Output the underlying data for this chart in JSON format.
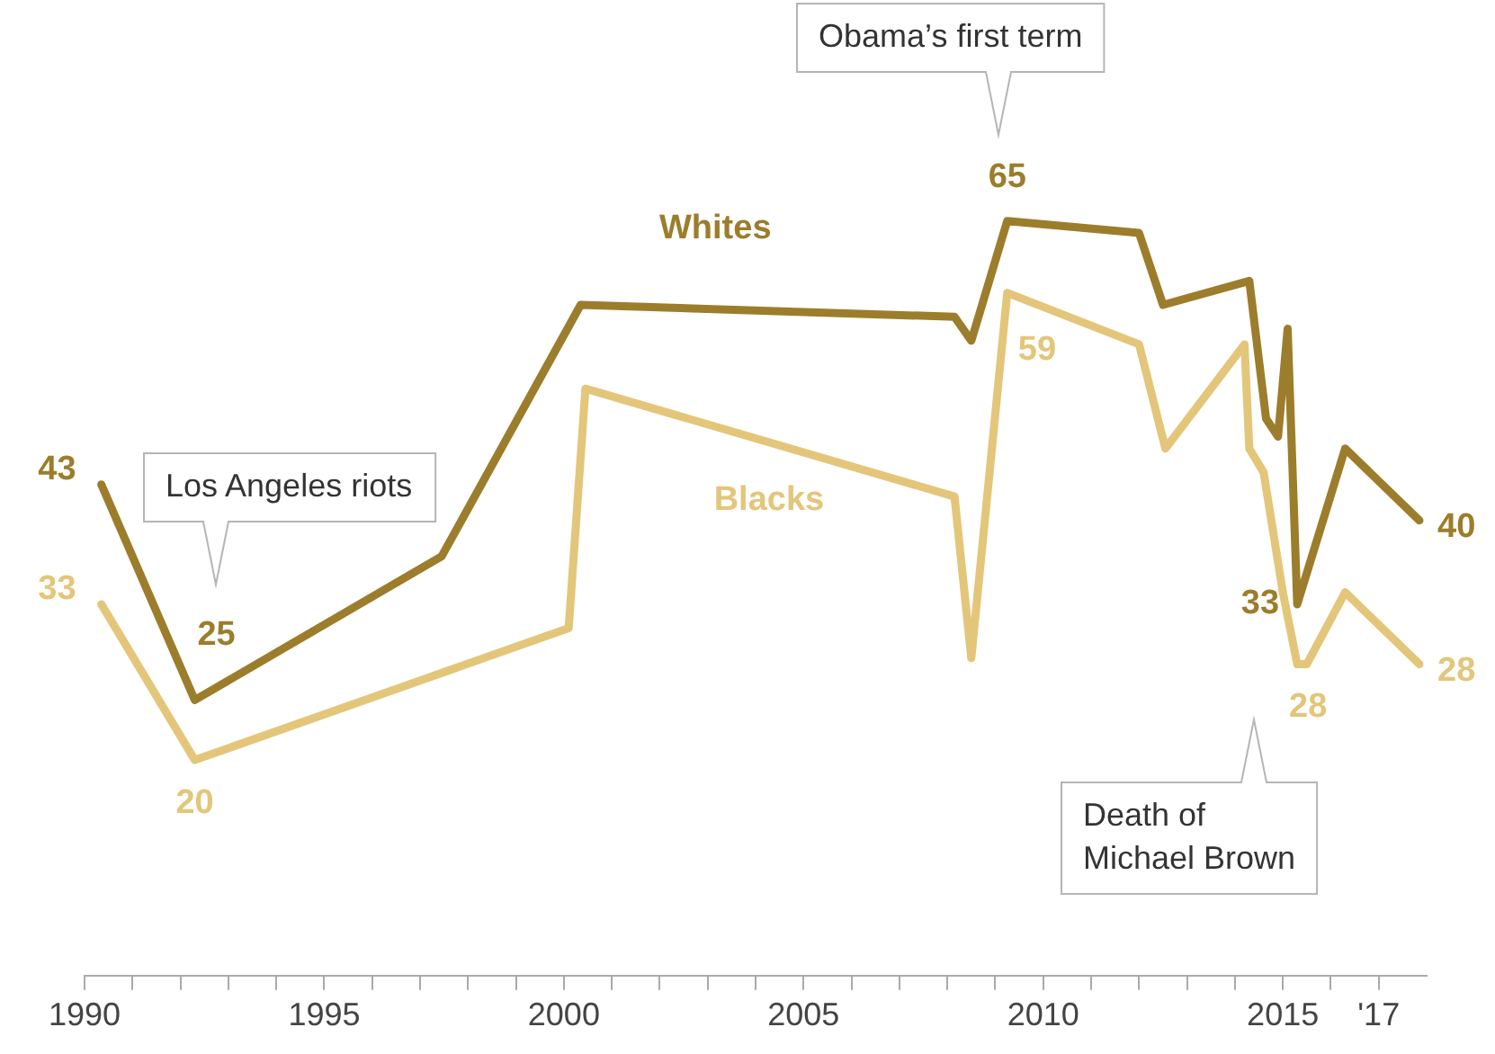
{
  "chart_data": {
    "type": "line",
    "series": [
      {
        "name": "Whites",
        "color": "#9c7d2b",
        "x": [
          1990.35,
          1992.3,
          1997.45,
          2000.35,
          2008.15,
          2008.5,
          2009.25,
          2012.0,
          2012.5,
          2014.3,
          2014.65,
          2014.9,
          2015.1,
          2015.3,
          2016.3,
          2017.85
        ],
        "values": [
          43,
          25,
          37,
          58,
          57,
          55,
          65,
          64,
          58,
          60,
          48.5,
          47,
          56,
          33,
          46,
          40
        ],
        "value_labels": [
          "43",
          "25",
          null,
          null,
          null,
          null,
          "65",
          null,
          null,
          null,
          null,
          null,
          null,
          "33",
          null,
          "40"
        ]
      },
      {
        "name": "Blacks",
        "color": "#e3c67a",
        "x": [
          1990.35,
          1992.3,
          2000.1,
          2000.45,
          2008.15,
          2008.5,
          2009.25,
          2012.0,
          2012.55,
          2014.2,
          2014.3,
          2014.6,
          2015.0,
          2015.3,
          2015.5,
          2016.3,
          2017.85
        ],
        "values": [
          33,
          20,
          31,
          51,
          42,
          28.5,
          59,
          54.7,
          46,
          54.7,
          46,
          44,
          34,
          28,
          28,
          34,
          28
        ],
        "value_labels": [
          "33",
          "20",
          null,
          null,
          null,
          null,
          "59",
          null,
          null,
          null,
          null,
          null,
          null,
          "28",
          null,
          null,
          "28"
        ]
      }
    ],
    "xlim": [
      1990,
      2018
    ],
    "xticks": [
      1990,
      {
        "value": 1991,
        "label": null
      },
      {
        "value": 1992,
        "label": null
      },
      {
        "value": 1993,
        "label": null
      },
      {
        "value": 1994,
        "label": null
      },
      1995,
      {
        "value": 1996,
        "label": null
      },
      {
        "value": 1997,
        "label": null
      },
      {
        "value": 1998,
        "label": null
      },
      {
        "value": 1999,
        "label": null
      },
      2000,
      {
        "value": 2001,
        "label": null
      },
      {
        "value": 2002,
        "label": null
      },
      {
        "value": 2003,
        "label": null
      },
      {
        "value": 2004,
        "label": null
      },
      2005,
      {
        "value": 2006,
        "label": null
      },
      {
        "value": 2007,
        "label": null
      },
      {
        "value": 2008,
        "label": null
      },
      {
        "value": 2009,
        "label": null
      },
      2010,
      {
        "value": 2011,
        "label": null
      },
      {
        "value": 2012,
        "label": null
      },
      {
        "value": 2013,
        "label": null
      },
      {
        "value": 2014,
        "label": null
      },
      2015,
      {
        "value": 2016,
        "label": null
      },
      {
        "value": 2017,
        "label": "'17"
      }
    ],
    "tick_labels": "x",
    "grid": false,
    "legend": false,
    "marker": "none",
    "line_style": "solid",
    "annotations": [
      "Los Angeles riots",
      "Obama’s first term",
      "Death of\nMichael Brown"
    ]
  }
}
